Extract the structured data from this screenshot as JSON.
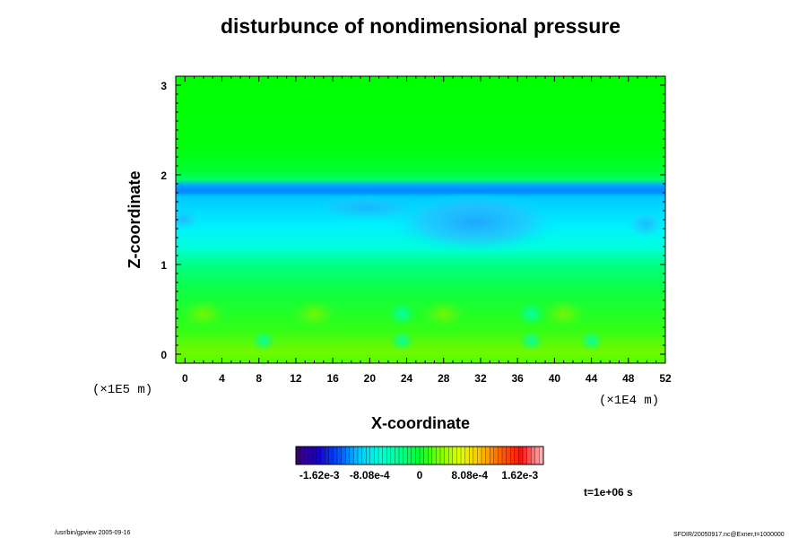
{
  "chart_data": {
    "type": "heatmap",
    "title": "disturbunce of nondimensional pressure",
    "xlabel": "X-coordinate",
    "ylabel": "Z-coordinate",
    "x_scale_label": "(×1E4 m)",
    "y_scale_label": "(×1E5 m)",
    "xlim": [
      -1,
      52
    ],
    "ylim": [
      -0.1,
      3.1
    ],
    "x_ticks": [
      "0",
      "4",
      "8",
      "12",
      "16",
      "20",
      "24",
      "28",
      "32",
      "36",
      "40",
      "44",
      "48",
      "52"
    ],
    "y_ticks": [
      "0",
      "1",
      "2",
      "3"
    ],
    "colorbar": {
      "range": [
        -0.002,
        0.002
      ],
      "tick_values": [
        -0.00162,
        -0.000808,
        0,
        0.000808,
        0.00162
      ],
      "tick_labels": [
        "-1.62e-3",
        "-8.08e-4",
        "0",
        "8.08e-4",
        "1.62e-3"
      ],
      "colors": [
        "#3a007a",
        "#1800c8",
        "#0050ff",
        "#00c8ff",
        "#00ffd8",
        "#00ff90",
        "#00ff28",
        "#80ff00",
        "#e0ff00",
        "#ffc000",
        "#ff6000",
        "#ff1010",
        "#ffb0b0"
      ]
    },
    "z_levels": [
      {
        "z": 0.05,
        "band": "#5cf800"
      },
      {
        "z": 0.5,
        "band": "#30ff20"
      },
      {
        "z": 1.0,
        "band": "#00ff60"
      },
      {
        "z": 1.5,
        "band": "#00e8ff"
      },
      {
        "z": 1.8,
        "band": "#0090ff"
      },
      {
        "z": 2.0,
        "band": "#00ff20"
      },
      {
        "z": 3.0,
        "band": "#00ff00"
      }
    ],
    "blue_feature": {
      "x_center": 32,
      "z_center": 1.5
    }
  },
  "annotations": {
    "time": "t=1e+06 s",
    "footer_left": "/usr/bin/gpview 2005-09-16",
    "footer_right": "SFDIR/20050917.nc@Exner,t=1000000"
  }
}
